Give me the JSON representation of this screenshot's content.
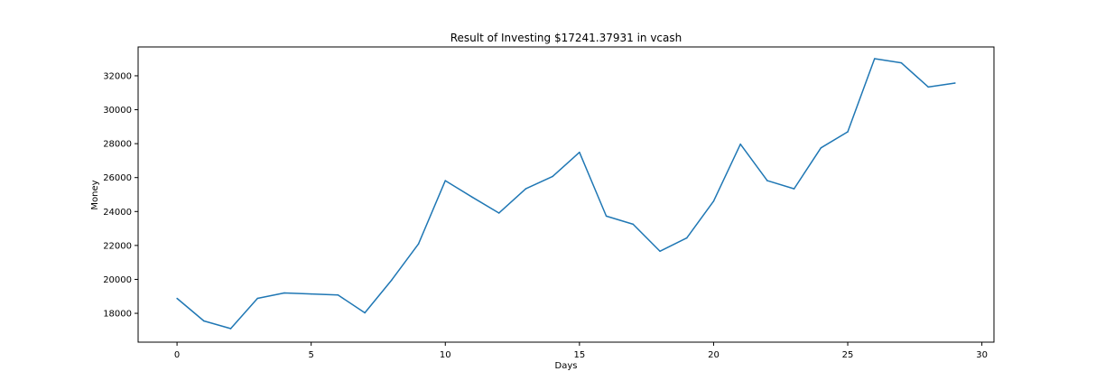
{
  "chart_data": {
    "type": "line",
    "title": "Result of Investing $17241.37931 in vcash",
    "xlabel": "Days",
    "ylabel": "Money",
    "xlim": [
      -1.45,
      30.45
    ],
    "ylim": [
      16300,
      33700
    ],
    "xticks": [
      0,
      5,
      10,
      15,
      20,
      25,
      30
    ],
    "yticks": [
      18000,
      20000,
      22000,
      24000,
      26000,
      28000,
      30000,
      32000
    ],
    "grid": false,
    "color": "#1f77b4",
    "x": [
      0,
      1,
      2,
      3,
      4,
      5,
      6,
      7,
      8,
      9,
      10,
      11,
      12,
      13,
      14,
      15,
      16,
      17,
      18,
      19,
      20,
      21,
      22,
      23,
      24,
      25,
      26,
      27,
      28,
      29
    ],
    "series": [
      {
        "values": [
          18880,
          17550,
          17100,
          18880,
          19200,
          19140,
          19080,
          18030,
          19960,
          22090,
          25820,
          24850,
          23910,
          25340,
          26070,
          27490,
          23730,
          23250,
          21660,
          22440,
          24610,
          27970,
          25820,
          25340,
          27750,
          28700,
          33010,
          32760,
          31340,
          31570
        ]
      }
    ]
  }
}
